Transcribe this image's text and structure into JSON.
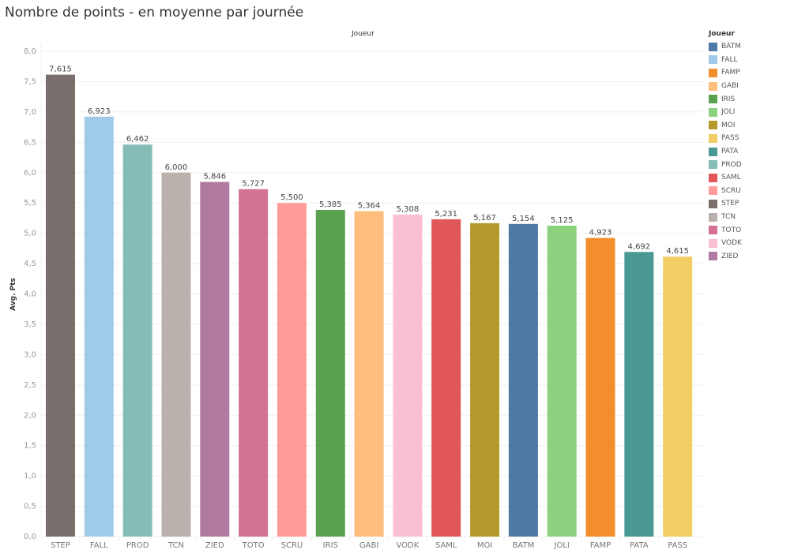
{
  "chart_data": {
    "type": "bar",
    "title": "Nombre de points - en moyenne par journée",
    "column_header": "Joueur",
    "ylabel": "Avg. Pts",
    "xlabel": "",
    "ylim": [
      0,
      8
    ],
    "yticks": [
      "0,0",
      "0,5",
      "1,0",
      "1,5",
      "2,0",
      "2,5",
      "3,0",
      "3,5",
      "4,0",
      "4,5",
      "5,0",
      "5,5",
      "6,0",
      "6,5",
      "7,0",
      "7,5",
      "8,0"
    ],
    "ytick_values": [
      0,
      0.5,
      1,
      1.5,
      2,
      2.5,
      3,
      3.5,
      4,
      4.5,
      5,
      5.5,
      6,
      6.5,
      7,
      7.5,
      8
    ],
    "grid": true,
    "categories": [
      "STEP",
      "FALL",
      "PROD",
      "TCN",
      "ZIED",
      "TOTO",
      "SCRU",
      "IRIS",
      "GABI",
      "VODK",
      "SAML",
      "MOI",
      "BATM",
      "JOLI",
      "FAMP",
      "PATA",
      "PASS"
    ],
    "values": [
      7.615,
      6.923,
      6.462,
      6.0,
      5.846,
      5.727,
      5.5,
      5.385,
      5.364,
      5.308,
      5.231,
      5.167,
      5.154,
      5.125,
      4.923,
      4.692,
      4.615
    ],
    "labels": [
      "7,615",
      "6,923",
      "6,462",
      "6,000",
      "5,846",
      "5,727",
      "5,500",
      "5,385",
      "5,364",
      "5,308",
      "5,231",
      "5,167",
      "5,154",
      "5,125",
      "4,923",
      "4,692",
      "4,615"
    ],
    "legend": {
      "title": "Joueur",
      "position": "right",
      "items": [
        {
          "label": "BATM",
          "color": "#4e79a7"
        },
        {
          "label": "FALL",
          "color": "#a0cbe8"
        },
        {
          "label": "FAMP",
          "color": "#f28e2b"
        },
        {
          "label": "GABI",
          "color": "#ffbe7d"
        },
        {
          "label": "IRIS",
          "color": "#59a14f"
        },
        {
          "label": "JOLI",
          "color": "#8cd17d"
        },
        {
          "label": "MOI",
          "color": "#b6992d"
        },
        {
          "label": "PASS",
          "color": "#f1ce63"
        },
        {
          "label": "PATA",
          "color": "#499894"
        },
        {
          "label": "PROD",
          "color": "#86bcb6"
        },
        {
          "label": "SAML",
          "color": "#e15759"
        },
        {
          "label": "SCRU",
          "color": "#ff9d9a"
        },
        {
          "label": "STEP",
          "color": "#79706e"
        },
        {
          "label": "TCN",
          "color": "#bab0ac"
        },
        {
          "label": "TOTO",
          "color": "#d37295"
        },
        {
          "label": "VODK",
          "color": "#fabfd2"
        },
        {
          "label": "ZIED",
          "color": "#b07aa1"
        }
      ]
    }
  }
}
